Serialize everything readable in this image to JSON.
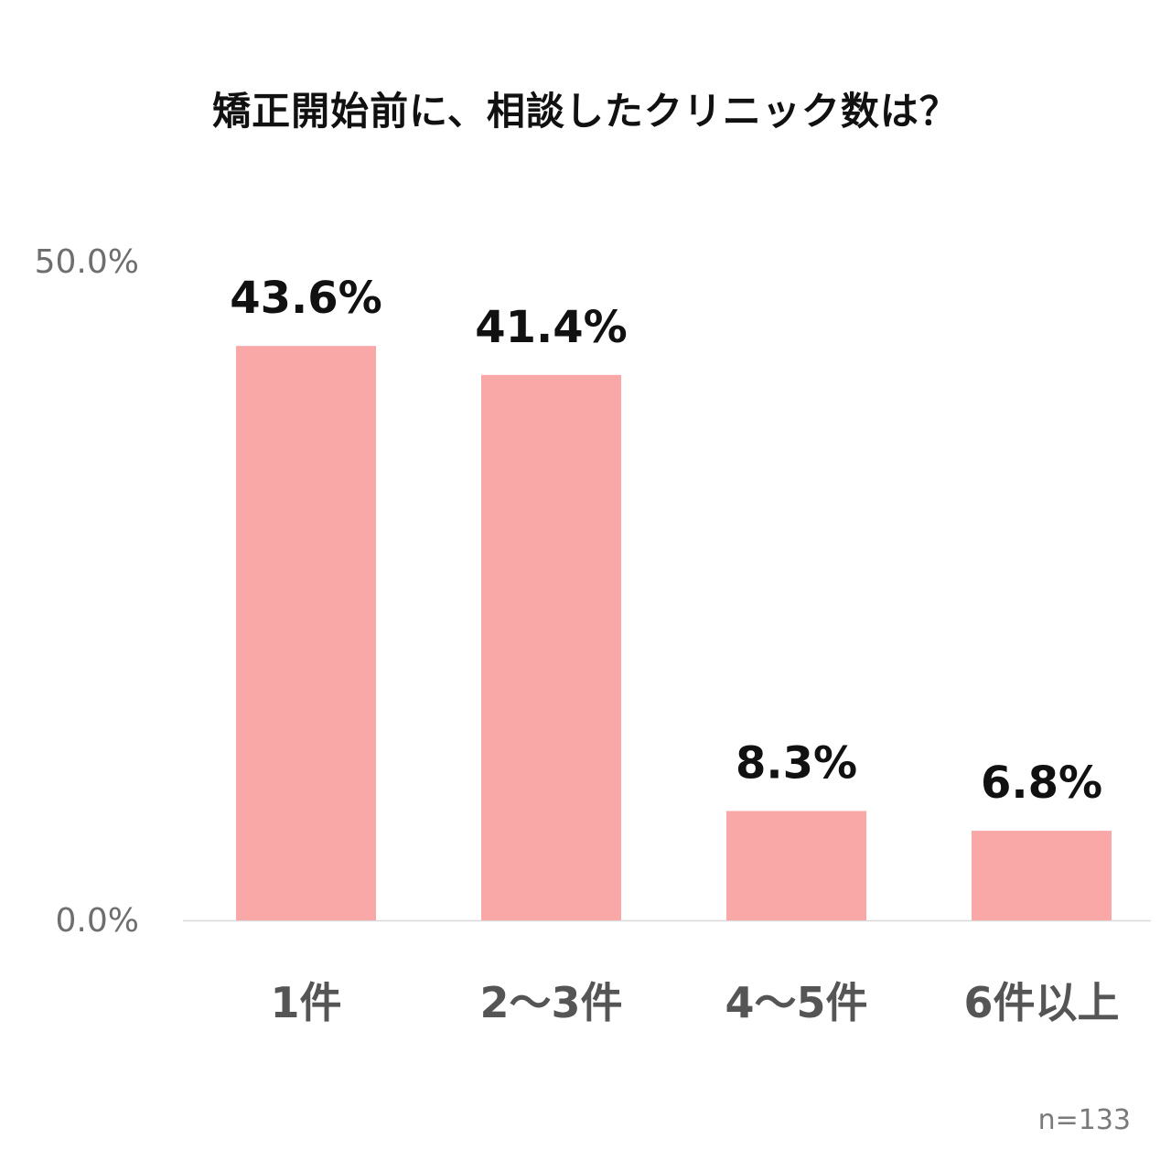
{
  "chart_data": {
    "type": "bar",
    "title": "矯正開始前に、相談したクリニック数は？",
    "categories": [
      "1件",
      "2〜3件",
      "4〜5件",
      "6件以上"
    ],
    "values": [
      43.6,
      41.4,
      8.3,
      6.8
    ],
    "value_labels": [
      "43.6%",
      "41.4%",
      "8.3%",
      "6.8%"
    ],
    "ylim": [
      0,
      50
    ],
    "y_tick_labels": [
      "0.0%",
      "50.0%"
    ],
    "xlabel": "",
    "ylabel": "",
    "grid": false,
    "legend": "none",
    "bar_color": "#f9a7a7",
    "note": "n=133"
  }
}
